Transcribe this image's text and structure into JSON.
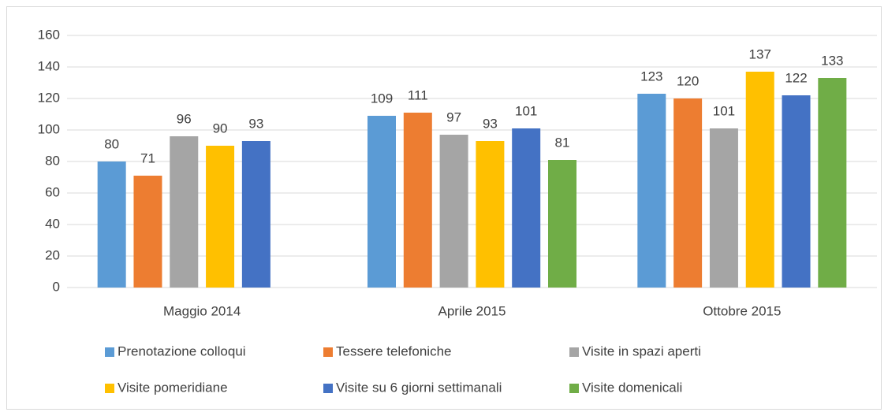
{
  "chart_data": {
    "type": "bar",
    "categories": [
      "Maggio 2014",
      "Aprile 2015",
      "Ottobre 2015"
    ],
    "series": [
      {
        "name": "Prenotazione colloqui",
        "color": "#5b9bd5",
        "values": [
          80,
          109,
          123
        ]
      },
      {
        "name": "Tessere telefoniche",
        "color": "#ed7d31",
        "values": [
          71,
          111,
          120
        ]
      },
      {
        "name": "Visite in spazi aperti",
        "color": "#a5a5a5",
        "values": [
          96,
          97,
          101
        ]
      },
      {
        "name": "Visite pomeridiane",
        "color": "#ffc000",
        "values": [
          90,
          93,
          137
        ]
      },
      {
        "name": "Visite su 6 giorni settimanali",
        "color": "#4472c4",
        "values": [
          93,
          101,
          122
        ]
      },
      {
        "name": "Visite domenicali",
        "color": "#70ad47",
        "values": [
          null,
          81,
          133
        ]
      }
    ],
    "ylim": [
      0,
      160
    ],
    "yticks": [
      0,
      20,
      40,
      60,
      80,
      100,
      120,
      140,
      160
    ],
    "grid": true,
    "legend": "bottom"
  }
}
